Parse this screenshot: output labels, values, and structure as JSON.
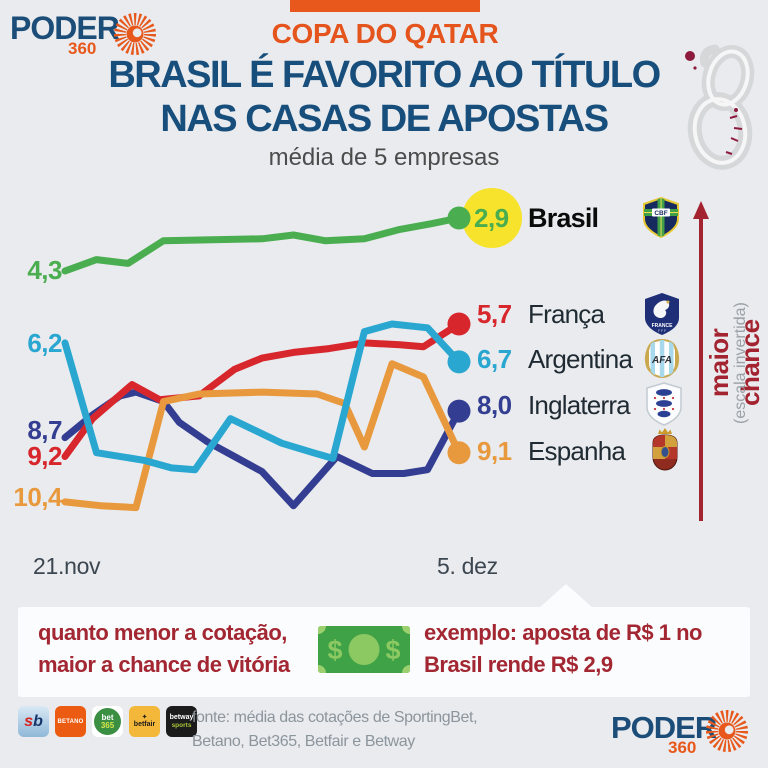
{
  "colors": {
    "background": "#e9ebee",
    "accent_orange": "#e8571c",
    "title_blue": "#174e7c",
    "note_red": "#a32430",
    "highlight_yellow": "#f7e32b",
    "callout_bg": "#fbfcfd",
    "money_green": "#3fa246",
    "money_light_green": "#8cc963"
  },
  "header": {
    "brand": {
      "name": "PODER",
      "sub": "360"
    },
    "kicker": "COPA DO QATAR",
    "title_line1": "BRASIL É FAVORITO AO TÍTULO",
    "title_line2": "NAS CASAS DE APOSTAS",
    "subtitle": "média de 5 empresas"
  },
  "chart_data": {
    "type": "line",
    "title": "BRASIL É FAVORITO AO TÍTULO NAS CASAS DE APOSTAS — média de 5 empresas",
    "x_axis": {
      "start_label": "21.nov",
      "end_label": "5. dez"
    },
    "y_axis": {
      "inverted": true,
      "note": "maior chance (escala invertida)",
      "value_range": [
        2.9,
        10.6
      ]
    },
    "draw_order": [
      3,
      1,
      4,
      2,
      0
    ],
    "end_highlight": {
      "series_index": 0,
      "color": "#f7e32b"
    },
    "series": [
      {
        "name": "Brasil",
        "color": "#4aae50",
        "start_label": "4,3",
        "end_label": "2,9",
        "points": [
          [
            0,
            4.3
          ],
          [
            0.08,
            4.0
          ],
          [
            0.16,
            4.1
          ],
          [
            0.25,
            3.5
          ],
          [
            0.5,
            3.45
          ],
          [
            0.58,
            3.35
          ],
          [
            0.66,
            3.5
          ],
          [
            0.76,
            3.45
          ],
          [
            0.85,
            3.2
          ],
          [
            0.93,
            3.05
          ],
          [
            1,
            2.9
          ]
        ]
      },
      {
        "name": "França",
        "color": "#d7262c",
        "start_label": "9,2",
        "end_label": "5,7",
        "points": [
          [
            0,
            9.2
          ],
          [
            0.07,
            8.2
          ],
          [
            0.17,
            7.3
          ],
          [
            0.24,
            7.7
          ],
          [
            0.34,
            7.6
          ],
          [
            0.43,
            6.9
          ],
          [
            0.5,
            6.6
          ],
          [
            0.58,
            6.45
          ],
          [
            0.67,
            6.35
          ],
          [
            0.76,
            6.2
          ],
          [
            0.85,
            6.25
          ],
          [
            0.91,
            6.3
          ],
          [
            1,
            5.7
          ]
        ]
      },
      {
        "name": "Argentina",
        "color": "#29a7d1",
        "start_label": "6,2",
        "end_label": "6,7",
        "points": [
          [
            0,
            6.2
          ],
          [
            0.08,
            9.1
          ],
          [
            0.2,
            9.3
          ],
          [
            0.27,
            9.5
          ],
          [
            0.33,
            9.55
          ],
          [
            0.42,
            8.2
          ],
          [
            0.55,
            8.85
          ],
          [
            0.63,
            9.1
          ],
          [
            0.68,
            9.25
          ],
          [
            0.76,
            5.9
          ],
          [
            0.83,
            5.7
          ],
          [
            0.92,
            5.8
          ],
          [
            1,
            6.7
          ]
        ]
      },
      {
        "name": "Inglaterra",
        "color": "#333e92",
        "start_label": "8,7",
        "end_label": "8,0",
        "points": [
          [
            0,
            8.7
          ],
          [
            0.07,
            8.1
          ],
          [
            0.14,
            7.6
          ],
          [
            0.18,
            7.5
          ],
          [
            0.25,
            7.75
          ],
          [
            0.29,
            8.3
          ],
          [
            0.36,
            8.8
          ],
          [
            0.43,
            9.2
          ],
          [
            0.5,
            9.6
          ],
          [
            0.58,
            10.5
          ],
          [
            0.69,
            9.2
          ],
          [
            0.78,
            9.65
          ],
          [
            0.86,
            9.65
          ],
          [
            0.92,
            9.55
          ],
          [
            1,
            8.0
          ]
        ]
      },
      {
        "name": "Espanha",
        "color": "#e9993d",
        "start_label": "10,4",
        "end_label": "9,1",
        "points": [
          [
            0,
            10.4
          ],
          [
            0.09,
            10.5
          ],
          [
            0.18,
            10.55
          ],
          [
            0.25,
            7.75
          ],
          [
            0.34,
            7.55
          ],
          [
            0.5,
            7.5
          ],
          [
            0.64,
            7.55
          ],
          [
            0.71,
            7.8
          ],
          [
            0.76,
            8.95
          ],
          [
            0.83,
            6.75
          ],
          [
            0.91,
            7.1
          ],
          [
            1,
            9.1
          ]
        ]
      }
    ]
  },
  "side_note": {
    "label": "maior chance",
    "sublabel": "(escala invertida)",
    "arrow_color": "#a32430"
  },
  "callout": {
    "left_line1": "quanto menor a cotação,",
    "left_line2": "maior a chance de vitória",
    "right_line1": "exemplo: aposta de R$ 1 no",
    "right_line2": "Brasil rende R$ 2,9",
    "money_icon": "dollar-bill-icon"
  },
  "footer": {
    "source_line1": "fonte: média das cotações de SportingBet,",
    "source_line2": "Betano, Bet365, Betfair e Betway",
    "logos": [
      {
        "id": "sportingbet",
        "text": "sb"
      },
      {
        "id": "betano",
        "text": "BETANO"
      },
      {
        "id": "bet365",
        "line1": "bet",
        "line2": "365"
      },
      {
        "id": "betfair",
        "text": "betfair"
      },
      {
        "id": "betway",
        "line1": "betway",
        "line2": "sports"
      }
    ],
    "brand": {
      "name": "PODER",
      "sub": "360"
    }
  }
}
